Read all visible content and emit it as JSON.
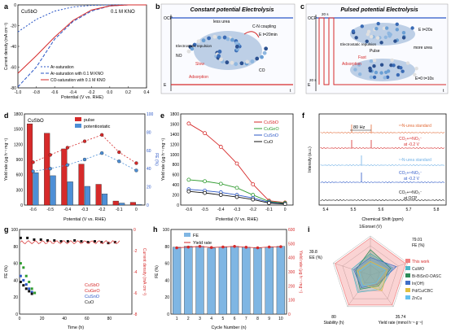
{
  "panels": {
    "a": {
      "letter": "a",
      "tag": "CuSbO",
      "cond": "0.1 M KNO",
      "xlabel": "Potential (V vs. RHE)",
      "ylabel": "Current density (mA cm⁻²)"
    },
    "b": {
      "letter": "b",
      "title": "Constant potential  Electrolysis",
      "labels": [
        "less urea",
        "C-N coupling",
        "E t=20min",
        "Electrostatic repulsion",
        "Slow",
        "Adsorption",
        "NO",
        "CO"
      ],
      "axis_top": "OCP",
      "axis_left": "E",
      "axis_right": "t"
    },
    "c": {
      "letter": "c",
      "title": "Pulsed potential  Electrolysis",
      "labels": [
        "20 s",
        "20 s",
        "Electrostatic repulsion",
        "Pulse",
        "Fast",
        "Adsorption",
        "more urea",
        "E t=20s",
        "E=0 t=10s"
      ],
      "axis_top": "OCP",
      "axis_left": "E",
      "axis_right": "t"
    },
    "d": {
      "letter": "d",
      "tag": "CuSbO",
      "xlabel": "Potential (V vs. RHE)",
      "ylabel": "Yield rate (μg h⁻¹ mg⁻¹)",
      "ylabel2": "FE (%)"
    },
    "e": {
      "letter": "e",
      "xlabel": "Potential (V vs. RHE)",
      "ylabel": "Yield rate (μg h⁻¹ mg⁻¹)"
    },
    "f": {
      "letter": "f",
      "xlabel": "Chemical Shift (ppm)",
      "ylabel": "Intensity (a.u.)",
      "gap": "80 Hz",
      "labels": [
        "¹⁵N-urea standard",
        "CO₂+¹⁵NO₃⁻",
        "at -0.2 V",
        "¹⁴N-urea standard",
        "CO₂+¹⁴NO₃⁻",
        "at -0.2 V",
        "CO₂+¹⁴NO₃⁻",
        "at OCP"
      ]
    },
    "g": {
      "letter": "g",
      "xlabel": "Time (h)",
      "ylabel": "FE (%)",
      "ylabel2": "Current density (mA cm⁻²)"
    },
    "h": {
      "letter": "h",
      "xlabel": "Cycle Number (n)",
      "ylabel": "FE (%)",
      "ylabel2": "Yield rate (μg h⁻¹ mg⁻¹)"
    },
    "i": {
      "letter": "i",
      "axes": [
        "1/Eonset (V)",
        "FE (%)",
        "Yield rate (mmol h⁻¹ g⁻¹)",
        "Stability (h)",
        "EE (%)"
      ],
      "vals": [
        "79.01",
        "35.74",
        "80",
        "39.8"
      ]
    }
  },
  "chart_data": [
    {
      "panel": "a",
      "type": "line",
      "x": [
        -1.0,
        -0.8,
        -0.6,
        -0.4,
        -0.2,
        0.0,
        0.2,
        0.4
      ],
      "xlim": [
        -1.0,
        0.4
      ],
      "ylim": [
        -80,
        0
      ],
      "yticks": [
        -80,
        -60,
        -40,
        -20,
        0
      ],
      "series": [
        {
          "name": "Ar-saturation",
          "values": [
            -26,
            -14,
            -6,
            -2,
            -0.5,
            0,
            0,
            0
          ]
        },
        {
          "name": "Ar-saturation with 0.1 M KNO",
          "values": [
            -79,
            -60,
            -33,
            -16,
            -6,
            -1,
            0,
            0
          ]
        },
        {
          "name": "CO-saturation with 0.1 M KNO",
          "values": [
            -66,
            -49,
            -31,
            -15,
            -5,
            -1,
            0,
            0
          ]
        }
      ]
    },
    {
      "panel": "d",
      "type": "bar",
      "categories": [
        "-0.6",
        "-0.5",
        "-0.4",
        "-0.3",
        "-0.2",
        "-0.1",
        "0"
      ],
      "ylim": [
        0,
        1800
      ],
      "ylim2": [
        0,
        100
      ],
      "series": [
        {
          "name": "pulse",
          "values": [
            1605,
            1420,
            1110,
            810,
            410,
            80,
            55
          ],
          "fe": [
            47,
            55,
            63,
            70,
            77,
            58,
            46
          ]
        },
        {
          "name": "potentiostatic",
          "values": [
            640,
            580,
            460,
            370,
            220,
            40,
            10
          ],
          "fe": [
            37,
            40,
            44,
            50,
            57,
            48,
            38
          ]
        }
      ]
    },
    {
      "panel": "e",
      "type": "line",
      "categories": [
        "-0.6",
        "-0.5",
        "-0.4",
        "-0.3",
        "-0.2",
        "-0.1",
        "0"
      ],
      "ylim": [
        0,
        1800
      ],
      "series": [
        {
          "name": "CuSbO",
          "values": [
            1610,
            1420,
            1150,
            820,
            410,
            85,
            50
          ]
        },
        {
          "name": "CuGeO",
          "values": [
            500,
            470,
            420,
            340,
            200,
            70,
            40
          ]
        },
        {
          "name": "CuSnO",
          "values": [
            310,
            285,
            250,
            200,
            140,
            55,
            25
          ]
        },
        {
          "name": "CuO",
          "values": [
            270,
            240,
            200,
            160,
            110,
            40,
            20
          ]
        }
      ]
    },
    {
      "panel": "g",
      "type": "scatter",
      "xlim": [
        0,
        100
      ],
      "ylim": [
        0,
        100
      ],
      "ylim2": [
        -8,
        0
      ],
      "series": [
        {
          "name": "CuSbO",
          "values": [
            90,
            90,
            88,
            88,
            87,
            87,
            86,
            86,
            87,
            86,
            85,
            86,
            85,
            84,
            85
          ]
        },
        {
          "name": "CuGeO",
          "values": [
            60,
            55,
            45,
            38,
            30,
            25
          ]
        },
        {
          "name": "CuSnO",
          "values": [
            45,
            40,
            35,
            30,
            26
          ]
        },
        {
          "name": "CuO",
          "values": [
            38,
            34,
            30,
            27,
            24
          ]
        }
      ]
    },
    {
      "panel": "h",
      "type": "bar",
      "categories": [
        "1",
        "2",
        "3",
        "4",
        "5",
        "6",
        "7",
        "8",
        "9",
        "10"
      ],
      "ylim": [
        0,
        100
      ],
      "ylim2": [
        0,
        600
      ],
      "series": [
        {
          "name": "FE",
          "values": [
            79,
            80,
            80,
            78,
            79,
            80,
            79,
            78,
            79,
            80
          ]
        },
        {
          "name": "Yield rate",
          "values": [
            470,
            475,
            480,
            472,
            476,
            480,
            474,
            470,
            476,
            478
          ]
        }
      ]
    },
    {
      "panel": "i",
      "type": "radar",
      "axes": [
        "1/Eonset",
        "FE",
        "Yield rate",
        "Stability",
        "EE"
      ],
      "series": [
        {
          "name": "This work",
          "values": [
            0.95,
            0.95,
            0.95,
            0.95,
            0.95
          ]
        },
        {
          "name": "CuWO",
          "values": [
            0.55,
            0.6,
            0.45,
            0.55,
            0.5
          ]
        },
        {
          "name": "Bi-BiSnO-DASC",
          "values": [
            0.65,
            0.55,
            0.35,
            0.45,
            0.4
          ]
        },
        {
          "name": "In(OH)",
          "values": [
            0.45,
            0.7,
            0.3,
            0.4,
            0.45
          ]
        },
        {
          "name": "Pd/Cu/CBC",
          "values": [
            0.35,
            0.45,
            0.5,
            0.3,
            0.35
          ]
        },
        {
          "name": "ZnCu",
          "values": [
            0.3,
            0.4,
            0.25,
            0.35,
            0.3
          ]
        }
      ]
    }
  ],
  "colors": {
    "red": "#d62a2a",
    "blue": "#2a56c6",
    "green": "#2f9b2f",
    "black": "#111111",
    "orange": "#e36d3a",
    "lightblue": "#6fb0e6"
  }
}
